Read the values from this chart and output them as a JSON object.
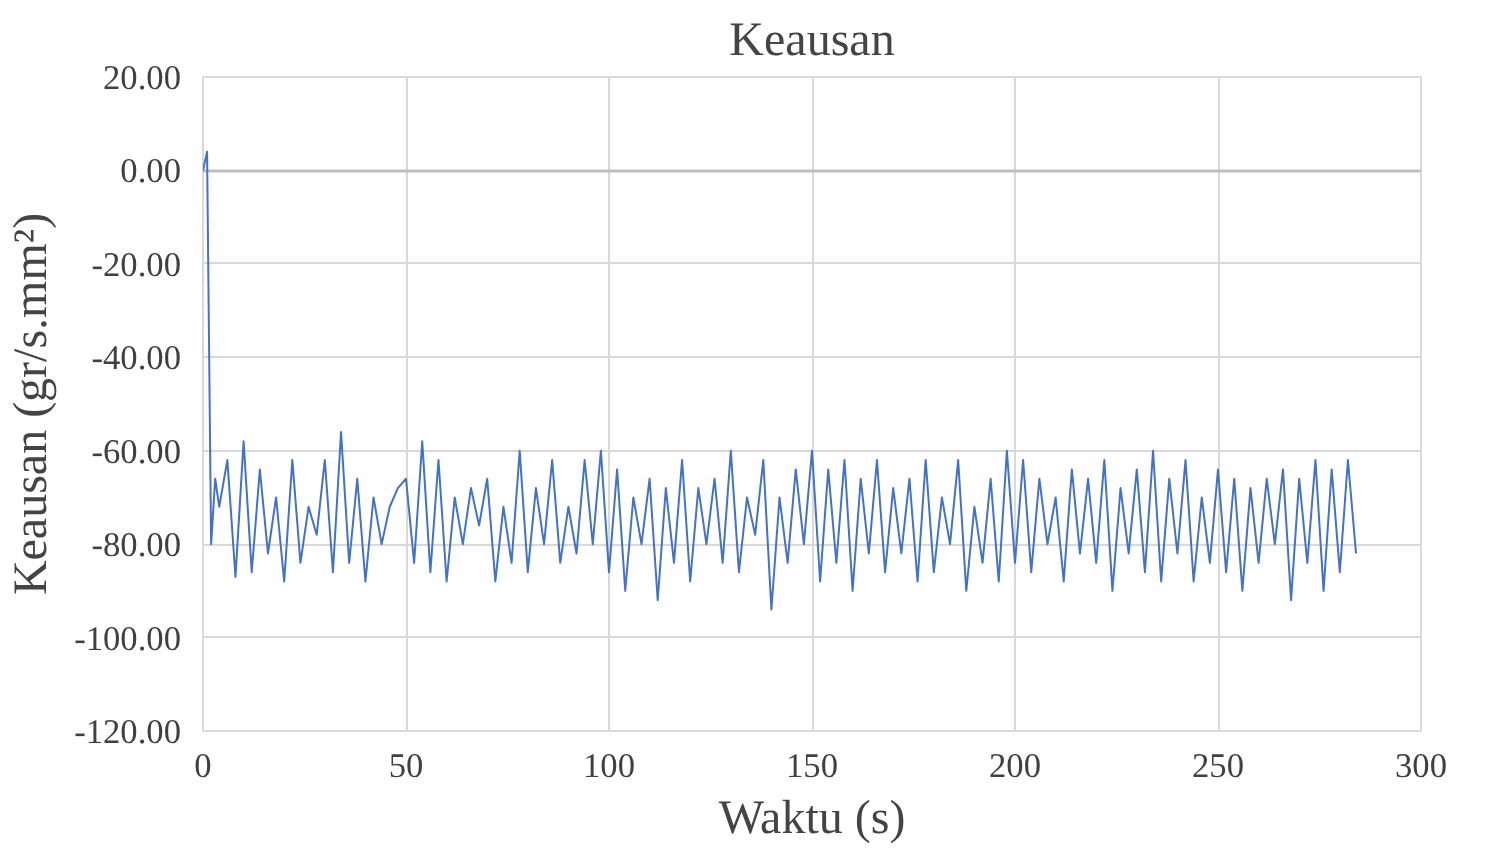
{
  "chart_data": {
    "type": "line",
    "title": "Keausan",
    "xlabel": "Waktu (s)",
    "ylabel": "Keausan (gr/s.mm²)",
    "xlim": [
      0,
      300
    ],
    "xticks": [
      0,
      50,
      100,
      150,
      200,
      250,
      300
    ],
    "ylim": [
      -120,
      20
    ],
    "yticks": [
      {
        "value": 20,
        "label": "20.00"
      },
      {
        "value": 0,
        "label": "0.00"
      },
      {
        "value": -20,
        "label": "-20.00"
      },
      {
        "value": -40,
        "label": "-40.00"
      },
      {
        "value": -60,
        "label": "-60.00"
      },
      {
        "value": -80,
        "label": "-80.00"
      },
      {
        "value": -100,
        "label": "-100.00"
      },
      {
        "value": -120,
        "label": "-120.00"
      }
    ],
    "grid": true,
    "marker": "none",
    "line_style": "solid",
    "series": [
      {
        "color": "#4472c4",
        "x": [
          0,
          1,
          2,
          3,
          4,
          6,
          8,
          10,
          12,
          14,
          16,
          18,
          20,
          22,
          24,
          26,
          28,
          30,
          32,
          34,
          36,
          38,
          40,
          42,
          44,
          46,
          48,
          50,
          52,
          54,
          56,
          58,
          60,
          62,
          64,
          66,
          68,
          70,
          72,
          74,
          76,
          78,
          80,
          82,
          84,
          86,
          88,
          90,
          92,
          94,
          96,
          98,
          100,
          102,
          104,
          106,
          108,
          110,
          112,
          114,
          116,
          118,
          120,
          122,
          124,
          126,
          128,
          130,
          132,
          134,
          136,
          138,
          140,
          142,
          144,
          146,
          148,
          150,
          152,
          154,
          156,
          158,
          160,
          162,
          164,
          166,
          168,
          170,
          172,
          174,
          176,
          178,
          180,
          182,
          184,
          186,
          188,
          190,
          192,
          194,
          196,
          198,
          200,
          202,
          204,
          206,
          208,
          210,
          212,
          214,
          216,
          218,
          220,
          222,
          224,
          226,
          228,
          230,
          232,
          234,
          236,
          238,
          240,
          242,
          244,
          246,
          248,
          250,
          252,
          254,
          256,
          258,
          260,
          262,
          264,
          266,
          268,
          270,
          272,
          274,
          276,
          278,
          280,
          282,
          284
        ],
        "values": [
          0,
          4,
          -80,
          -66,
          -72,
          -62,
          -87,
          -58,
          -86,
          -64,
          -82,
          -70,
          -88,
          -62,
          -84,
          -72,
          -78,
          -62,
          -86,
          -56,
          -84,
          -66,
          -88,
          -70,
          -80,
          -72,
          -68,
          -66,
          -84,
          -58,
          -86,
          -62,
          -88,
          -70,
          -80,
          -68,
          -76,
          -66,
          -88,
          -72,
          -84,
          -60,
          -86,
          -68,
          -80,
          -62,
          -84,
          -72,
          -82,
          -62,
          -80,
          -60,
          -86,
          -64,
          -90,
          -70,
          -80,
          -66,
          -92,
          -68,
          -84,
          -62,
          -88,
          -68,
          -80,
          -66,
          -84,
          -60,
          -86,
          -70,
          -78,
          -62,
          -94,
          -70,
          -84,
          -64,
          -80,
          -60,
          -88,
          -64,
          -84,
          -62,
          -90,
          -66,
          -82,
          -62,
          -86,
          -68,
          -82,
          -66,
          -88,
          -62,
          -86,
          -70,
          -80,
          -62,
          -90,
          -72,
          -84,
          -66,
          -88,
          -60,
          -84,
          -62,
          -86,
          -66,
          -80,
          -70,
          -88,
          -64,
          -82,
          -66,
          -84,
          -62,
          -90,
          -68,
          -82,
          -64,
          -86,
          -60,
          -88,
          -66,
          -82,
          -62,
          -88,
          -70,
          -84,
          -64,
          -86,
          -66,
          -90,
          -68,
          -84,
          -66,
          -80,
          -64,
          -92,
          -66,
          -84,
          -62,
          -90,
          -64,
          -86,
          -62,
          -82
        ]
      }
    ]
  }
}
